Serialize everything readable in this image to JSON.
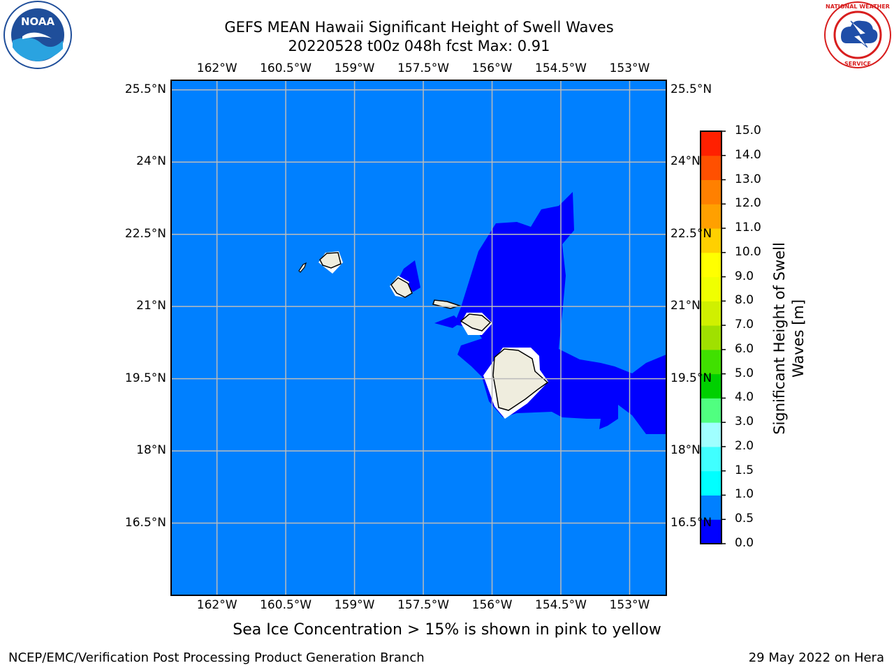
{
  "title": {
    "line1": "GEFS MEAN Hawaii Significant Height of Swell Waves",
    "line2": "20220528 t00z 048h fcst   Max: 0.91"
  },
  "map": {
    "lon_labels": [
      "162°W",
      "160.5°W",
      "159°W",
      "157.5°W",
      "156°W",
      "154.5°W",
      "153°W"
    ],
    "lat_labels": [
      "25.5°N",
      "24°N",
      "22.5°N",
      "21°N",
      "19.5°N",
      "18°N",
      "16.5°N"
    ],
    "lon_range": [
      -163,
      -152.2
    ],
    "lat_range": [
      15,
      25.7
    ],
    "colors": {
      "background_sea": "#0080ff",
      "low_swell": "#0000ff",
      "land": "#efedde",
      "grid": "#bbbbbb"
    },
    "grid": true
  },
  "colorbar": {
    "title_line1": "Significant Height of Swell",
    "title_line2": "Waves [m]",
    "ticks": [
      "0.0",
      "0.5",
      "1.0",
      "1.5",
      "2.0",
      "3.0",
      "4.0",
      "5.0",
      "6.0",
      "7.0",
      "8.0",
      "9.0",
      "10.0",
      "11.0",
      "12.0",
      "13.0",
      "14.0",
      "15.0"
    ],
    "colors": [
      "#0000ff",
      "#0080ff",
      "#00ffff",
      "#40ffff",
      "#a0ffff",
      "#50ff80",
      "#00d000",
      "#40e000",
      "#a0e000",
      "#d0f000",
      "#f0ff00",
      "#ffff00",
      "#ffd000",
      "#ffa000",
      "#ff8000",
      "#ff5000",
      "#ff2000"
    ]
  },
  "caption": "Sea Ice Concentration > 15% is shown in pink to yellow",
  "credit_left": "NCEP/EMC/Verification Post Processing Product Generation Branch",
  "credit_right": "29 May 2022 on Hera",
  "logos": {
    "noaa_text": "NOAA",
    "nws_text": "NATIONAL WEATHER SERVICE"
  }
}
